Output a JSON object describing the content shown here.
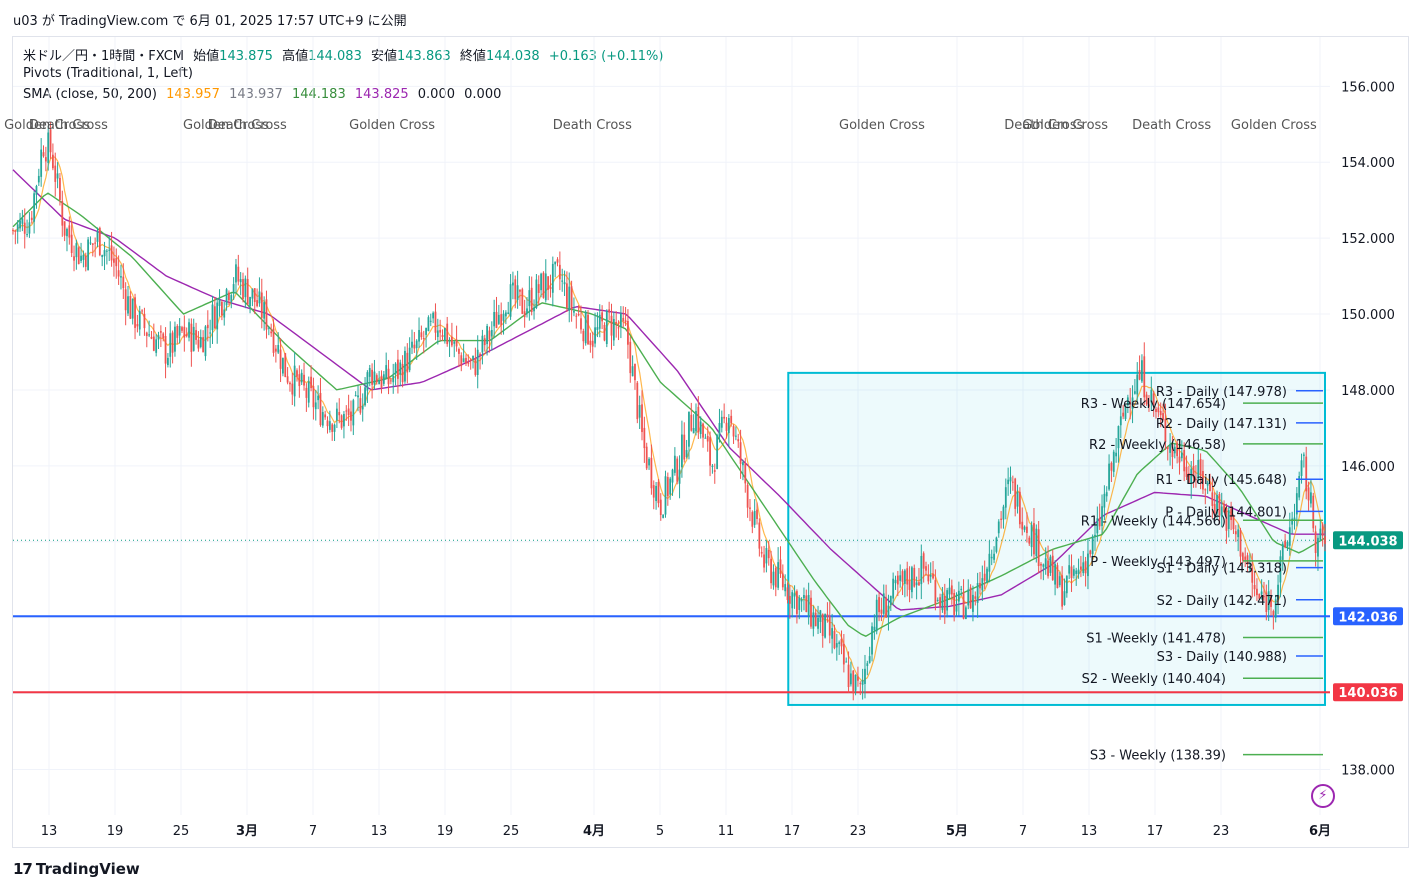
{
  "header": {
    "publish_line": "u03 が TradingView.com で 6月 01, 2025 17:57 UTC+9 に公開",
    "symbol": "米ドル／円・1時間・FXCM",
    "ohlc": [
      {
        "label": "始値",
        "value": "143.875"
      },
      {
        "label": "高値",
        "value": "144.083"
      },
      {
        "label": "安値",
        "value": "143.863"
      },
      {
        "label": "終値",
        "value": "144.038"
      }
    ],
    "change": "+0.163 (+0.11%)",
    "pivots_label": "Pivots (Traditional, 1, Left)",
    "sma_label": "SMA (close, 50, 200)",
    "sma_values": [
      "143.957",
      "143.937",
      "144.183",
      "143.825",
      "0.000",
      "0.000"
    ]
  },
  "footer": {
    "brand": "TradingView",
    "logo": "17"
  },
  "colors": {
    "up": "#089981",
    "down": "#f23645",
    "candle_up": "#26a69a",
    "candle_down": "#ef5350",
    "sma_fast": "#ff9800",
    "sma_mid": "#4caf50",
    "sma_slow": "#9c27b0",
    "blue_line": "#2962ff",
    "red_line": "#f23645",
    "box": "#00bcd4",
    "daily_pivot": "#2962ff",
    "weekly_pivot": "#4caf50"
  },
  "chart_data": {
    "type": "candlestick",
    "yaxis": {
      "ticks": [
        "156.000",
        "154.000",
        "152.000",
        "150.000",
        "148.000",
        "146.000",
        "144.000",
        "142.000",
        "140.000",
        "138.000"
      ],
      "range": [
        136.8,
        157.3
      ]
    },
    "xaxis": {
      "ticks": [
        "13",
        "19",
        "25",
        "3月",
        "7",
        "13",
        "19",
        "25",
        "4月",
        "5",
        "11",
        "17",
        "23",
        "5月",
        "7",
        "13",
        "17",
        "23",
        "6月"
      ]
    },
    "price_path": [
      [
        0,
        152.2
      ],
      [
        2,
        152.5
      ],
      [
        3.5,
        154.5
      ],
      [
        4.5,
        154.3
      ],
      [
        6,
        152.3
      ],
      [
        8,
        151.5
      ],
      [
        10,
        152.0
      ],
      [
        12,
        151.3
      ],
      [
        14,
        150.0
      ],
      [
        16,
        149.5
      ],
      [
        18,
        149.0
      ],
      [
        20,
        149.5
      ],
      [
        22,
        149.3
      ],
      [
        24,
        150.2
      ],
      [
        26,
        151.0
      ],
      [
        28,
        150.5
      ],
      [
        30,
        149.8
      ],
      [
        32,
        148.5
      ],
      [
        34,
        148.0
      ],
      [
        36,
        147.5
      ],
      [
        38,
        147.2
      ],
      [
        40,
        147.3
      ],
      [
        42,
        148.5
      ],
      [
        44,
        148.2
      ],
      [
        46,
        148.7
      ],
      [
        48,
        149.3
      ],
      [
        50,
        149.8
      ],
      [
        52,
        149.0
      ],
      [
        54,
        148.6
      ],
      [
        56,
        149.5
      ],
      [
        58,
        150.5
      ],
      [
        60,
        150.2
      ],
      [
        62,
        150.7
      ],
      [
        64,
        151.0
      ],
      [
        66,
        150.0
      ],
      [
        68,
        149.4
      ],
      [
        70,
        149.8
      ],
      [
        72,
        149.5
      ],
      [
        74,
        146.5
      ],
      [
        76,
        145.0
      ],
      [
        78,
        146.0
      ],
      [
        80,
        147.5
      ],
      [
        82,
        146.0
      ],
      [
        84,
        147.5
      ],
      [
        86,
        145.5
      ],
      [
        88,
        143.5
      ],
      [
        90,
        143.0
      ],
      [
        92,
        142.5
      ],
      [
        94,
        142.0
      ],
      [
        96,
        141.5
      ],
      [
        98,
        140.5
      ],
      [
        99.5,
        140.0
      ],
      [
        101,
        142.0
      ],
      [
        103,
        142.5
      ],
      [
        105,
        143.0
      ],
      [
        107,
        143.3
      ],
      [
        109,
        142.5
      ],
      [
        111,
        142.3
      ],
      [
        113,
        142.6
      ],
      [
        115,
        144.0
      ],
      [
        117,
        145.5
      ],
      [
        119,
        144.5
      ],
      [
        121,
        143.5
      ],
      [
        123,
        142.7
      ],
      [
        125,
        143.2
      ],
      [
        127,
        144.0
      ],
      [
        129,
        146.0
      ],
      [
        131,
        148.0
      ],
      [
        132.5,
        148.4
      ],
      [
        134,
        147.5
      ],
      [
        136,
        146.5
      ],
      [
        138,
        146.0
      ],
      [
        140,
        145.5
      ],
      [
        142,
        144.8
      ],
      [
        144,
        144.0
      ],
      [
        146,
        142.5
      ],
      [
        148,
        142.5
      ],
      [
        150,
        144.5
      ],
      [
        151.5,
        146.0
      ],
      [
        153,
        144.0
      ],
      [
        154,
        144.0
      ]
    ],
    "sma_50_knots": [
      [
        0,
        152.3
      ],
      [
        4,
        153.2
      ],
      [
        8,
        152.6
      ],
      [
        14,
        151.5
      ],
      [
        20,
        150.0
      ],
      [
        26,
        150.6
      ],
      [
        32,
        149.2
      ],
      [
        38,
        148.0
      ],
      [
        44,
        148.3
      ],
      [
        50,
        149.3
      ],
      [
        56,
        149.3
      ],
      [
        62,
        150.3
      ],
      [
        68,
        150.0
      ],
      [
        72,
        149.6
      ],
      [
        76,
        148.2
      ],
      [
        82,
        147.0
      ],
      [
        88,
        145.0
      ],
      [
        94,
        143.0
      ],
      [
        98,
        141.8
      ],
      [
        100,
        141.5
      ],
      [
        104,
        142.0
      ],
      [
        110,
        142.5
      ],
      [
        116,
        143.1
      ],
      [
        122,
        143.8
      ],
      [
        128,
        144.2
      ],
      [
        132,
        145.8
      ],
      [
        136,
        146.6
      ],
      [
        140,
        146.4
      ],
      [
        144,
        145.4
      ],
      [
        148,
        144.0
      ],
      [
        151,
        143.7
      ],
      [
        154,
        144.1
      ]
    ],
    "sma_200_knots": [
      [
        0,
        153.8
      ],
      [
        6,
        152.5
      ],
      [
        12,
        152.0
      ],
      [
        18,
        151.0
      ],
      [
        24,
        150.4
      ],
      [
        30,
        150.0
      ],
      [
        36,
        149.0
      ],
      [
        42,
        148.0
      ],
      [
        48,
        148.2
      ],
      [
        54,
        148.8
      ],
      [
        60,
        149.5
      ],
      [
        66,
        150.2
      ],
      [
        72,
        150.0
      ],
      [
        78,
        148.5
      ],
      [
        84,
        146.5
      ],
      [
        90,
        145.2
      ],
      [
        96,
        143.8
      ],
      [
        100,
        143.0
      ],
      [
        104,
        142.2
      ],
      [
        110,
        142.3
      ],
      [
        116,
        142.6
      ],
      [
        122,
        143.4
      ],
      [
        128,
        144.7
      ],
      [
        134,
        145.3
      ],
      [
        140,
        145.2
      ],
      [
        146,
        144.6
      ],
      [
        150,
        144.2
      ],
      [
        154,
        144.2
      ]
    ],
    "horizontal_lines": [
      {
        "value": 142.036,
        "label": "142.036",
        "color": "#2962ff"
      },
      {
        "value": 140.036,
        "label": "140.036",
        "color": "#f23645"
      }
    ],
    "last_price": {
      "value": 144.038,
      "label": "144.038"
    },
    "rectangle": {
      "from_x": 91,
      "to_x": 154,
      "top": 148.45,
      "bottom": 139.7
    },
    "pivots": [
      {
        "label": "R3 - Daily (147.978)",
        "value": 147.978,
        "type": "daily"
      },
      {
        "label": "R3 - Weekly (147.654)",
        "value": 147.654,
        "type": "weekly"
      },
      {
        "label": "R2 - Daily (147.131)",
        "value": 147.131,
        "type": "daily"
      },
      {
        "label": "R2 - Weekly (146.58)",
        "value": 146.58,
        "type": "weekly"
      },
      {
        "label": "R1 - Daily (145.648)",
        "value": 145.648,
        "type": "daily"
      },
      {
        "label": "P - Daily (144.801)",
        "value": 144.801,
        "type": "daily"
      },
      {
        "label": "R1 - Weekly (144.566)",
        "value": 144.566,
        "type": "weekly"
      },
      {
        "label": "P - Weekly (143.497)",
        "value": 143.497,
        "type": "weekly"
      },
      {
        "label": "S1 - Daily (143.318)",
        "value": 143.318,
        "type": "daily"
      },
      {
        "label": "S2 - Daily (142.471)",
        "value": 142.471,
        "type": "daily"
      },
      {
        "label": "S1 -Weekly (141.478)",
        "value": 141.478,
        "type": "weekly"
      },
      {
        "label": "S3 - Daily (140.988)",
        "value": 140.988,
        "type": "daily"
      },
      {
        "label": "S2 - Weekly (140.404)",
        "value": 140.404,
        "type": "weekly"
      },
      {
        "label": "S3 - Weekly (138.39)",
        "value": 138.39,
        "type": "weekly"
      }
    ],
    "cross_labels": [
      {
        "text": "Golden Cross",
        "x": 4
      },
      {
        "text": "Death Cross",
        "x": 6.5
      },
      {
        "text": "Golden Cross",
        "x": 25
      },
      {
        "text": "Death Cross",
        "x": 27.5
      },
      {
        "text": "Golden Cross",
        "x": 44.5
      },
      {
        "text": "Death Cross",
        "x": 68
      },
      {
        "text": "Golden Cross",
        "x": 102
      },
      {
        "text": "Death Cross",
        "x": 121
      },
      {
        "text": "Golden Cross",
        "x": 123.5
      },
      {
        "text": "Death Cross",
        "x": 136
      },
      {
        "text": "Golden Cross",
        "x": 148
      }
    ]
  }
}
